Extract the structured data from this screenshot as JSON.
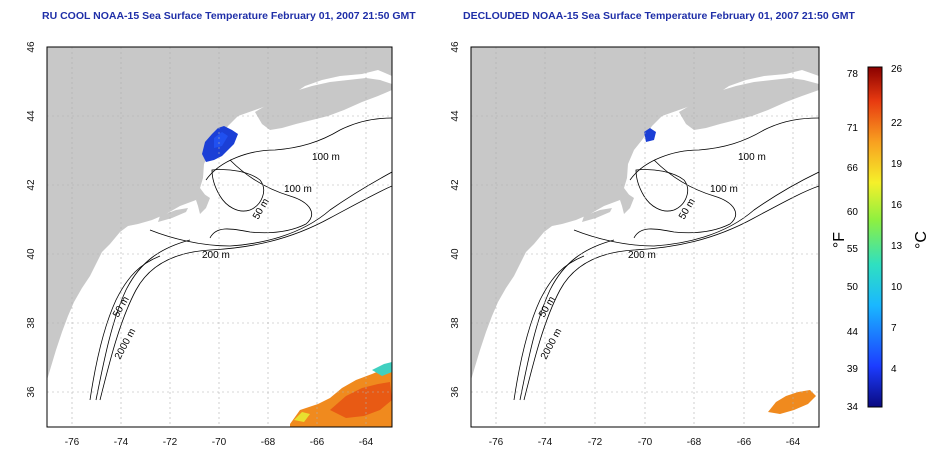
{
  "maps": [
    {
      "title": "RU COOL NOAA-15 Sea Surface Temperature February 01, 2007 21:50 GMT",
      "contour_labels": [
        "100 m",
        "100 m",
        "50 m",
        "200 m",
        "50 m",
        "2000 m"
      ]
    },
    {
      "title": "DECLOUDED NOAA-15 Sea Surface Temperature February 01, 2007 21:50 GMT",
      "contour_labels": [
        "100 m",
        "100 m",
        "50 m",
        "200 m",
        "50 m",
        "2000 m"
      ]
    }
  ],
  "axes": {
    "lon_ticks": [
      "-76",
      "-74",
      "-72",
      "-70",
      "-68",
      "-66",
      "-64"
    ],
    "lat_ticks": [
      "46",
      "44",
      "42",
      "40",
      "38",
      "36"
    ]
  },
  "colorbar": {
    "fahrenheit_label": "°F",
    "celsius_label": "°C",
    "fahrenheit_ticks": [
      "78",
      "71",
      "66",
      "60",
      "55",
      "50",
      "44",
      "39",
      "34"
    ],
    "celsius_ticks": [
      "26",
      "22",
      "19",
      "16",
      "13",
      "10",
      "7",
      "4"
    ]
  },
  "colors": {
    "land": "#c8c8c8",
    "ocean": "#ffffff",
    "contour": "#000000",
    "cold": "#1b3fd6",
    "warm": "#f08a1e"
  }
}
